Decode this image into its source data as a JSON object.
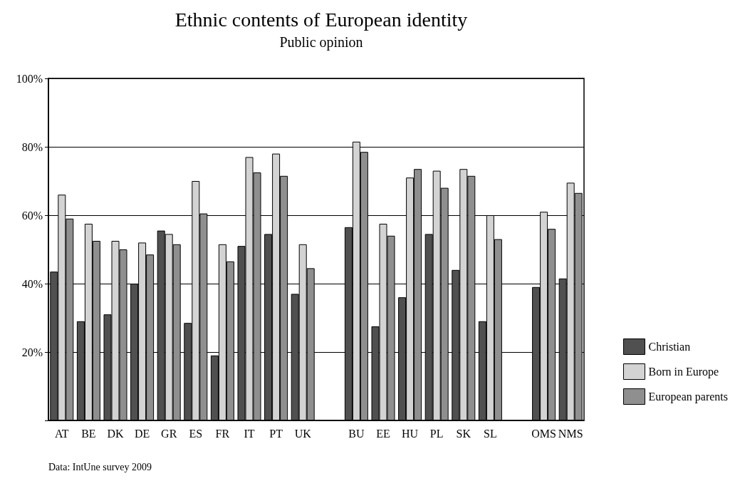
{
  "chart_data": {
    "type": "bar",
    "title": "Ethnic contents of European identity",
    "subtitle": "Public opinion",
    "categories": [
      "AT",
      "BE",
      "DK",
      "DE",
      "GR",
      "ES",
      "FR",
      "IT",
      "PT",
      "UK",
      null,
      "BU",
      "EE",
      "HU",
      "PL",
      "SK",
      "SL",
      null,
      "OMS",
      "NMS"
    ],
    "series": [
      {
        "name": "Christian",
        "color": "#505050",
        "values": [
          43.5,
          29,
          31,
          40,
          55.5,
          28.5,
          19,
          51,
          54.5,
          37,
          null,
          56.5,
          27.5,
          36,
          54.5,
          44,
          29,
          null,
          39,
          41.5
        ]
      },
      {
        "name": "Born in Europe",
        "color": "#d3d3d3",
        "values": [
          66,
          57.5,
          52.5,
          52,
          54.5,
          70,
          51.5,
          77,
          78,
          51.5,
          null,
          81.5,
          57.5,
          71,
          73,
          73.5,
          60,
          null,
          61,
          69.5
        ]
      },
      {
        "name": "European parents",
        "color": "#8f8f8f",
        "values": [
          59,
          52.5,
          50,
          48.5,
          51.5,
          60.5,
          46.5,
          72.5,
          71.5,
          44.5,
          null,
          78.5,
          54,
          73.5,
          68,
          71.5,
          53,
          null,
          56,
          66.5
        ]
      }
    ],
    "ylim": [
      0,
      100
    ],
    "yticks": [
      {
        "value": 0,
        "label": null
      },
      {
        "value": 20,
        "label": "20%"
      },
      {
        "value": 40,
        "label": "40%"
      },
      {
        "value": 60,
        "label": "60%"
      },
      {
        "value": 80,
        "label": "80%"
      },
      {
        "value": 100,
        "label": "100%"
      }
    ],
    "grid": "y",
    "legend": "right",
    "annotations": [
      "Data: IntUne survey 2009"
    ]
  }
}
